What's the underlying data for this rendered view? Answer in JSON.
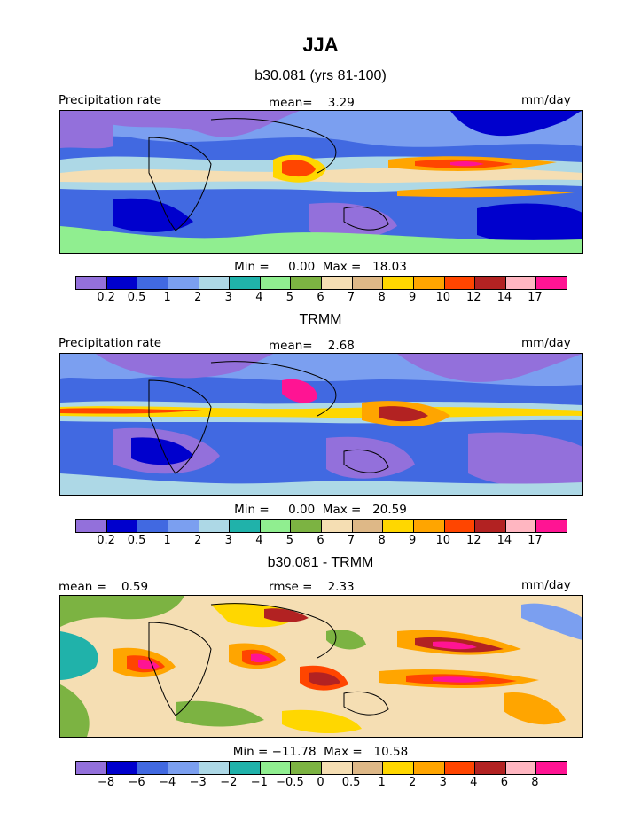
{
  "title": "JJA",
  "palette": {
    "precip": [
      "#9370db",
      "#0000cd",
      "#4169e1",
      "#7b9ff0",
      "#add8e6",
      "#20b2aa",
      "#90ee90",
      "#7cb342",
      "#f5deb3",
      "#deb887",
      "#ffd700",
      "#ffa500",
      "#ff4500",
      "#b22222",
      "#ffb6c1",
      "#ff1493"
    ]
  },
  "panels": [
    {
      "title": "b30.081 (yrs 81-100)",
      "left_label": "Precipitation rate",
      "mid_label": "mean=    3.29",
      "right_label": "mm/day",
      "minmax": "Min =     0.00  Max =   18.03",
      "ticks": [
        "0.2",
        "0.5",
        "1",
        "2",
        "3",
        "4",
        "5",
        "6",
        "7",
        "8",
        "9",
        "10",
        "12",
        "14",
        "17"
      ]
    },
    {
      "title": "TRMM",
      "left_label": "Precipitation rate",
      "mid_label": "mean=    2.68",
      "right_label": "mm/day",
      "minmax": "Min =     0.00  Max =   20.59",
      "ticks": [
        "0.2",
        "0.5",
        "1",
        "2",
        "3",
        "4",
        "5",
        "6",
        "7",
        "8",
        "9",
        "10",
        "12",
        "14",
        "17"
      ]
    },
    {
      "title": "b30.081 - TRMM",
      "left_label": "mean =    0.59",
      "mid_label": "rmse =    2.33",
      "right_label": "mm/day",
      "minmax": "Min = −11.78  Max =   10.58",
      "ticks": [
        "−8",
        "−6",
        "−4",
        "−3",
        "−2",
        "−1",
        "−0.5",
        "0",
        "0.5",
        "1",
        "2",
        "3",
        "4",
        "6",
        "8"
      ]
    }
  ]
}
